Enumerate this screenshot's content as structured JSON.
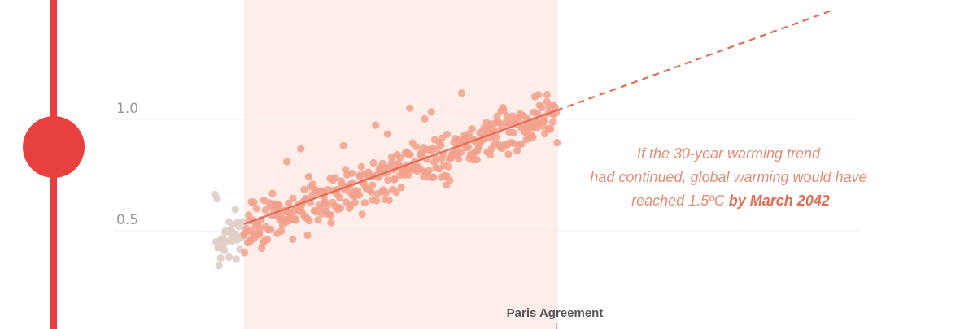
{
  "chart_data": {
    "type": "scatter",
    "ylabel": "",
    "xlabel": "",
    "ylim": [
      0.2,
      1.5
    ],
    "y_ticks": [
      {
        "value": 0.5,
        "label": "0.5"
      },
      {
        "value": 1.0,
        "label": "1.0"
      }
    ],
    "grid": true,
    "series": [
      {
        "color": "#e0cdc6",
        "note_scale": "monthly",
        "x_range": [
          "1988-01",
          "1990-12"
        ],
        "y_center_start": 0.44,
        "y_center_end": 0.5,
        "spread": 0.14
      },
      {
        "color": "#f2a08c",
        "x_range": [
          "1991-01",
          "2023-12"
        ],
        "y_center_start": 0.5,
        "y_center_end": 1.03,
        "spread": 0.16
      }
    ],
    "trend": {
      "color": "#e26d55",
      "start": {
        "x": "1991-01",
        "y": 0.53
      },
      "end_solid": {
        "x": "2023-12",
        "y": 1.04
      },
      "end_dashed": {
        "x": "2042-03",
        "y": 1.5
      }
    },
    "highlight_band": {
      "color": "#fdeee9",
      "x_range": [
        "1991-01",
        "2023-12"
      ]
    },
    "annotation": {
      "line1": "If the 30-year warming trend",
      "line2": "had continued, global warming would have",
      "line3_prefix": "reached 1.5ºC ",
      "line3_bold": "by March 2042"
    },
    "event_label": "Paris Agreement"
  },
  "colors": {
    "accent": "#e8403e",
    "grid": "#eeeeee"
  }
}
